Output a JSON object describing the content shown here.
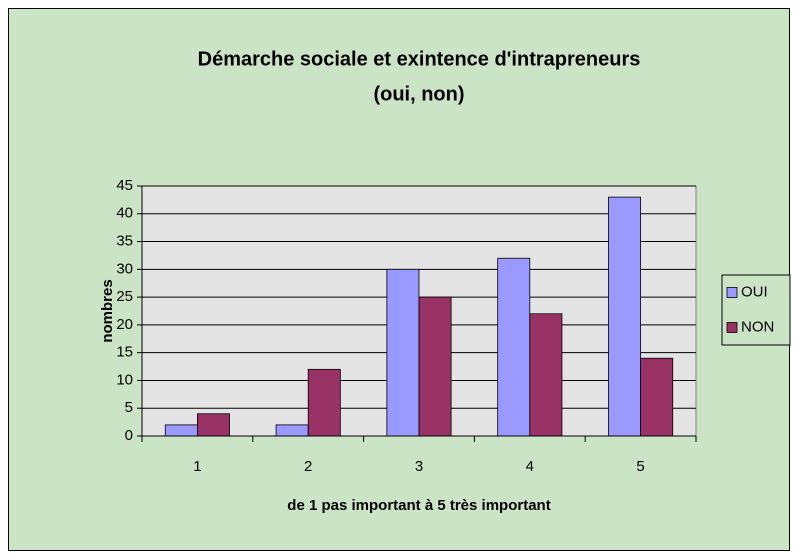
{
  "chart_data": {
    "type": "bar",
    "title": [
      "Démarche sociale  et  exintence d'intrapreneurs",
      "(oui, non)"
    ],
    "x_label": "de 1 pas important à 5 très important",
    "y_label": "nombres",
    "categories": [
      "1",
      "2",
      "3",
      "4",
      "5"
    ],
    "series": [
      {
        "name": "OUI",
        "color": "#9999ff",
        "values": [
          2,
          2,
          30,
          32,
          43
        ]
      },
      {
        "name": "NON",
        "color": "#993366",
        "values": [
          4,
          12,
          25,
          22,
          14
        ]
      }
    ],
    "ylim": [
      0,
      45
    ],
    "yticks": [
      0,
      5,
      10,
      15,
      20,
      25,
      30,
      35,
      40,
      45
    ],
    "grid": true,
    "legend": "right"
  }
}
